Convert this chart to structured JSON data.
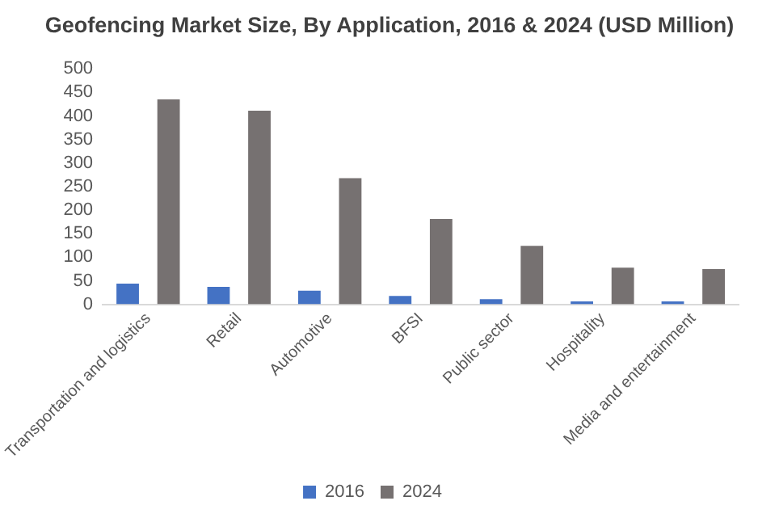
{
  "chart_data": {
    "type": "bar",
    "title": "Geofencing Market Size, By Application, 2016 & 2024 (USD Million)",
    "categories": [
      "Transportation and logistics",
      "Retail",
      "Automotive",
      "BFSI",
      "Public sector",
      "Hospitality",
      "Media and entertainment"
    ],
    "series": [
      {
        "name": "2016",
        "color": "#4472c4",
        "values": [
          44,
          37,
          29,
          18,
          11,
          6,
          6
        ]
      },
      {
        "name": "2024",
        "color": "#767171",
        "values": [
          435,
          411,
          268,
          181,
          124,
          78,
          75
        ]
      }
    ],
    "ylim": [
      0,
      500
    ],
    "yticks": [
      0,
      50,
      100,
      150,
      200,
      250,
      300,
      350,
      400,
      450,
      500
    ],
    "grid": false,
    "legend": "bottom"
  }
}
